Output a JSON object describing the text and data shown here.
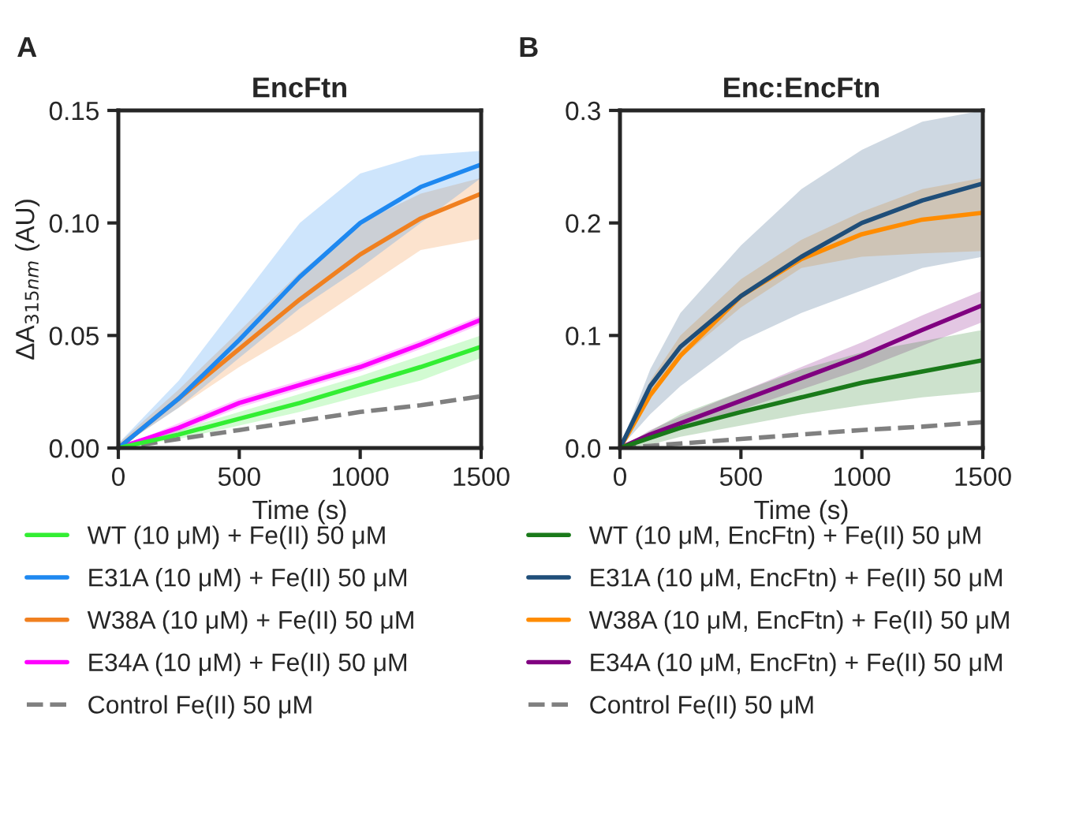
{
  "chart_data": [
    {
      "type": "line",
      "title": "EncFtn",
      "xlabel": "Time (s)",
      "ylabel": "ΔA$_{315nm}$ (AU)",
      "annotations": [
        "A"
      ],
      "x": [
        0,
        250,
        500,
        750,
        1000,
        1250,
        1500
      ],
      "xlim": [
        0,
        1500
      ],
      "xticks": [
        0,
        500,
        1000,
        1500
      ],
      "ylim": [
        0,
        0.15
      ],
      "yticks": [
        {
          "value": 0,
          "label": "0.00"
        },
        {
          "value": 0.05,
          "label": "0.05"
        },
        {
          "value": 0.1,
          "label": "0.10"
        },
        {
          "value": 0.15,
          "label": "0.15"
        }
      ],
      "grid": false,
      "legend": "bottom",
      "marker": "none",
      "series": [
        {
          "name": "WT (10 μM) + Fe(II) 50 μM",
          "color": "#33ee33",
          "line_style": "solid",
          "values": [
            0,
            0.006,
            0.013,
            0.02,
            0.028,
            0.036,
            0.045
          ],
          "lower": [
            0,
            0.004,
            0.01,
            0.016,
            0.023,
            0.03,
            0.04
          ],
          "upper": [
            0,
            0.008,
            0.016,
            0.024,
            0.032,
            0.041,
            0.05
          ]
        },
        {
          "name": "E31A (10 μM) + Fe(II) 50 μM",
          "color": "#1e88f0",
          "line_style": "solid",
          "values": [
            0,
            0.022,
            0.048,
            0.076,
            0.1,
            0.116,
            0.126
          ],
          "lower": [
            0,
            0.018,
            0.04,
            0.062,
            0.08,
            0.1,
            0.12
          ],
          "upper": [
            0.002,
            0.03,
            0.065,
            0.1,
            0.122,
            0.13,
            0.132
          ]
        },
        {
          "name": "W38A (10 μM) + Fe(II) 50 μM",
          "color": "#f08020",
          "line_style": "solid",
          "values": [
            0,
            0.022,
            0.044,
            0.066,
            0.086,
            0.102,
            0.113
          ],
          "lower": [
            0,
            0.018,
            0.036,
            0.052,
            0.07,
            0.088,
            0.093
          ],
          "upper": [
            0.002,
            0.026,
            0.052,
            0.078,
            0.1,
            0.113,
            0.12
          ]
        },
        {
          "name": "E34A (10 μM) + Fe(II) 50 μM",
          "color": "#ff00ff",
          "line_style": "solid",
          "values": [
            0,
            0.009,
            0.02,
            0.028,
            0.036,
            0.046,
            0.057
          ],
          "lower": [
            0,
            0.007,
            0.018,
            0.026,
            0.034,
            0.044,
            0.055
          ],
          "upper": [
            0,
            0.011,
            0.022,
            0.03,
            0.038,
            0.048,
            0.059
          ]
        },
        {
          "name": "Control Fe(II) 50 μM",
          "color": "#808080",
          "line_style": "dashed",
          "values": [
            0,
            0.004,
            0.008,
            0.012,
            0.016,
            0.019,
            0.023
          ]
        }
      ]
    },
    {
      "type": "line",
      "title": "Enc:EncFtn",
      "xlabel": "Time (s)",
      "annotations": [
        "B"
      ],
      "x": [
        0,
        125,
        250,
        500,
        750,
        1000,
        1250,
        1500
      ],
      "xlim": [
        0,
        1500
      ],
      "xticks": [
        0,
        500,
        1000,
        1500
      ],
      "ylim": [
        0,
        0.3
      ],
      "yticks": [
        {
          "value": 0,
          "label": "0.0"
        },
        {
          "value": 0.1,
          "label": "0.1"
        },
        {
          "value": 0.2,
          "label": "0.2"
        },
        {
          "value": 0.3,
          "label": "0.3"
        }
      ],
      "grid": false,
      "legend": "bottom",
      "marker": "none",
      "series": [
        {
          "name": "WT (10 μM, EncFtn) + Fe(II) 50 μM",
          "color": "#1a7a1a",
          "line_style": "solid",
          "values": [
            0,
            0.009,
            0.018,
            0.032,
            0.045,
            0.058,
            0.068,
            0.078
          ],
          "lower": [
            0,
            0.003,
            0.01,
            0.02,
            0.03,
            0.038,
            0.045,
            0.05
          ],
          "upper": [
            0,
            0.015,
            0.03,
            0.05,
            0.07,
            0.085,
            0.095,
            0.105
          ]
        },
        {
          "name": "E31A (10 μM, EncFtn) + Fe(II) 50 μM",
          "color": "#1f4e79",
          "line_style": "solid",
          "values": [
            0,
            0.055,
            0.09,
            0.135,
            0.17,
            0.2,
            0.22,
            0.235
          ],
          "lower": [
            0,
            0.03,
            0.055,
            0.095,
            0.12,
            0.14,
            0.16,
            0.17
          ],
          "upper": [
            0,
            0.07,
            0.12,
            0.18,
            0.23,
            0.265,
            0.29,
            0.3
          ]
        },
        {
          "name": "W38A (10 μM, EncFtn) + Fe(II) 50 μM",
          "color": "#ff8c00",
          "line_style": "solid",
          "values": [
            0,
            0.047,
            0.082,
            0.135,
            0.168,
            0.19,
            0.203,
            0.209
          ],
          "lower": [
            0,
            0.045,
            0.08,
            0.125,
            0.16,
            0.17,
            0.173,
            0.175
          ],
          "upper": [
            0,
            0.06,
            0.1,
            0.15,
            0.185,
            0.21,
            0.23,
            0.24
          ]
        },
        {
          "name": "E34A (10 μM, EncFtn) + Fe(II) 50 μM",
          "color": "#800080",
          "line_style": "solid",
          "values": [
            0,
            0.012,
            0.022,
            0.042,
            0.062,
            0.082,
            0.105,
            0.127
          ],
          "lower": [
            0,
            0.008,
            0.016,
            0.034,
            0.052,
            0.07,
            0.091,
            0.112
          ],
          "upper": [
            0,
            0.016,
            0.028,
            0.05,
            0.072,
            0.094,
            0.118,
            0.14
          ]
        },
        {
          "name": "Control Fe(II) 50 μM",
          "color": "#808080",
          "line_style": "dashed",
          "values": [
            0,
            0.002,
            0.004,
            0.008,
            0.012,
            0.016,
            0.019,
            0.023
          ]
        }
      ]
    }
  ]
}
